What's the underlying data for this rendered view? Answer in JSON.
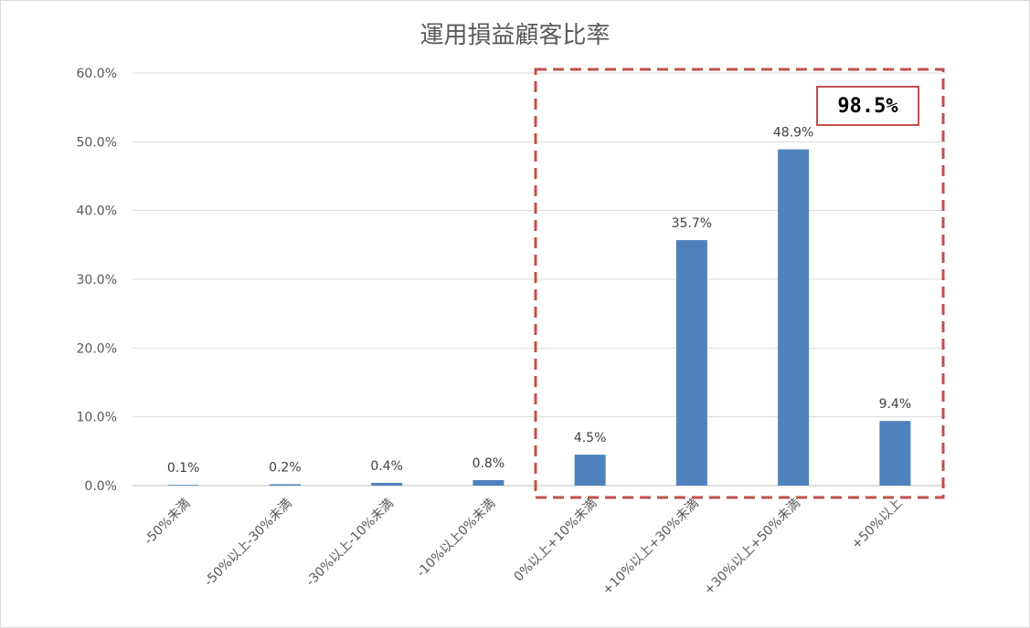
{
  "chart_data": {
    "type": "bar",
    "title": "運用損益顧客比率",
    "categories": [
      "-50%未満",
      "-50%以上-30%未満",
      "-30%以上-10%未満",
      "-10%以上0%未満",
      "0%以上+10%未満",
      "+10%以上+30%未満",
      "+30%以上+50%未満",
      "+50%以上"
    ],
    "values": [
      0.1,
      0.2,
      0.4,
      0.8,
      4.5,
      35.7,
      48.9,
      9.4
    ],
    "data_labels": [
      "0.1%",
      "0.2%",
      "0.4%",
      "0.8%",
      "4.5%",
      "35.7%",
      "48.9%",
      "9.4%"
    ],
    "yticks": [
      "0.0%",
      "10.0%",
      "20.0%",
      "30.0%",
      "40.0%",
      "50.0%",
      "60.0%"
    ],
    "ylim": [
      0,
      60
    ],
    "xlabel": "",
    "ylabel": "",
    "grid": true,
    "bar_color": "#4f81bd",
    "highlight": {
      "categories": [
        "0%以上+10%未満",
        "+10%以上+30%未満",
        "+30%以上+50%未満",
        "+50%以上"
      ],
      "label": "98.5%",
      "border_color": "#c0504d"
    }
  }
}
